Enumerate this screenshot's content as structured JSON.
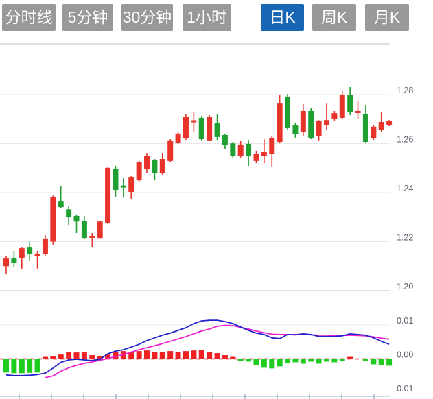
{
  "toolbar": {
    "tabs": [
      {
        "label": "分时线",
        "active": false
      },
      {
        "label": "5分钟",
        "active": false
      },
      {
        "label": "30分钟",
        "active": false
      },
      {
        "label": "1小时",
        "active": false
      },
      {
        "label": "日K",
        "active": true
      },
      {
        "label": "周K",
        "active": false
      },
      {
        "label": "月K",
        "active": false
      }
    ]
  },
  "colors": {
    "tab_bg": "#999999",
    "tab_active_bg": "#1767b5",
    "tab_text": "#ffffff",
    "candle_up": "#e8332a",
    "candle_down": "#1fa030",
    "hist_up": "#ee2222",
    "hist_down": "#1ecc1e",
    "dif_line": "#2222cc",
    "dea_line": "#ee22cc",
    "zero_line": "#f28080",
    "grid_line": "#e8e8e8",
    "panel_border": "#e2e2e2",
    "axis_line": "#c8ccda",
    "axis_tick": "#a8b0c4",
    "axis_text": "#5a5f6e"
  },
  "chart_data": {
    "type": "candlestick_with_macd",
    "main": {
      "axis_labels": [
        {
          "label": "1.28",
          "price": 1.28
        },
        {
          "label": "1.26",
          "price": 1.26
        },
        {
          "label": "1.24",
          "price": 1.24
        },
        {
          "label": "1.22",
          "price": 1.22
        },
        {
          "label": "1.20",
          "price": 1.2
        }
      ],
      "ylim": [
        1.198,
        1.301
      ],
      "ohlc_order": [
        "open",
        "close",
        "high",
        "low"
      ],
      "candles": [
        [
          1.21,
          1.2131,
          1.2142,
          1.207
        ],
        [
          1.2134,
          1.2114,
          1.2162,
          1.2095
        ],
        [
          1.2134,
          1.2173,
          1.2176,
          1.2087
        ],
        [
          1.2176,
          1.2148,
          1.2199,
          1.212
        ],
        [
          1.2145,
          1.2151,
          1.2162,
          1.209
        ],
        [
          1.2151,
          1.2213,
          1.2227,
          1.2143
        ],
        [
          1.22,
          1.2383,
          1.2388,
          1.2188
        ],
        [
          1.2366,
          1.2341,
          1.2425,
          1.2338
        ],
        [
          1.2332,
          1.2299,
          1.2346,
          1.2268
        ],
        [
          1.2305,
          1.2282,
          1.2311,
          1.2235
        ],
        [
          1.2285,
          1.2215,
          1.2305,
          1.2212
        ],
        [
          1.2218,
          1.2224,
          1.2235,
          1.2179
        ],
        [
          1.2215,
          1.2282,
          1.2285,
          1.2212
        ],
        [
          1.2277,
          1.2501,
          1.2506,
          1.2271
        ],
        [
          1.2498,
          1.2411,
          1.2509,
          1.2383
        ],
        [
          1.2429,
          1.2421,
          1.2459,
          1.238
        ],
        [
          1.2403,
          1.2464,
          1.2467,
          1.2375
        ],
        [
          1.245,
          1.2523,
          1.2529,
          1.2442
        ],
        [
          1.2495,
          1.2551,
          1.2562,
          1.2481
        ],
        [
          1.2534,
          1.2481,
          1.2537,
          1.245
        ],
        [
          1.2478,
          1.2537,
          1.2562,
          1.2473
        ],
        [
          1.2529,
          1.2613,
          1.2618,
          1.2523
        ],
        [
          1.2604,
          1.2641,
          1.2649,
          1.2599
        ],
        [
          1.2621,
          1.271,
          1.2719,
          1.2615
        ],
        [
          1.2689,
          1.2695,
          1.273,
          1.2649
        ],
        [
          1.2705,
          1.2618,
          1.2713,
          1.2613
        ],
        [
          1.2613,
          1.271,
          1.2716,
          1.261
        ],
        [
          1.2685,
          1.2627,
          1.2719,
          1.2615
        ],
        [
          1.2635,
          1.2593,
          1.2641,
          1.2579
        ],
        [
          1.2601,
          1.2551,
          1.2607,
          1.254
        ],
        [
          1.2551,
          1.2596,
          1.2612,
          1.2543
        ],
        [
          1.2599,
          1.2548,
          1.2615,
          1.2509
        ],
        [
          1.2529,
          1.2557,
          1.2571,
          1.252
        ],
        [
          1.2551,
          1.2565,
          1.2618,
          1.252
        ],
        [
          1.2559,
          1.2624,
          1.2632,
          1.2506
        ],
        [
          1.2607,
          1.2766,
          1.2797,
          1.2601
        ],
        [
          1.2792,
          1.2666,
          1.2803,
          1.2655
        ],
        [
          1.2674,
          1.2638,
          1.2685,
          1.2624
        ],
        [
          1.2646,
          1.2733,
          1.2761,
          1.2632
        ],
        [
          1.2733,
          1.2621,
          1.2744,
          1.2618
        ],
        [
          1.2632,
          1.2691,
          1.2696,
          1.2613
        ],
        [
          1.2677,
          1.2696,
          1.2766,
          1.2654
        ],
        [
          1.2702,
          1.2724,
          1.2733,
          1.2694
        ],
        [
          1.2705,
          1.28,
          1.2814,
          1.2699
        ],
        [
          1.28,
          1.273,
          1.2831,
          1.2716
        ],
        [
          1.2727,
          1.2733,
          1.2772,
          1.2702
        ],
        [
          1.2719,
          1.2607,
          1.2758,
          1.2601
        ],
        [
          1.2621,
          1.2669,
          1.2674,
          1.2615
        ],
        [
          1.2655,
          1.2688,
          1.273,
          1.2649
        ],
        [
          1.2677,
          1.2691,
          1.2696,
          1.2671
        ]
      ]
    },
    "indicator": {
      "name": "MACD",
      "axis_labels": [
        {
          "label": "0.01",
          "value": 0.01
        },
        {
          "label": "0.00",
          "value": 0.0
        },
        {
          "label": "-0.01",
          "value": -0.01
        }
      ],
      "ylim": [
        -0.011,
        0.012
      ],
      "histogram": [
        -0.004,
        -0.0042,
        -0.0042,
        -0.0041,
        -0.004,
        0.0002,
        0.0008,
        0.0013,
        0.0021,
        0.0019,
        0.0021,
        0.0011,
        0.0009,
        0.0013,
        0.0021,
        0.0023,
        0.0021,
        0.0023,
        0.0025,
        0.0021,
        0.0021,
        0.0023,
        0.0021,
        0.0023,
        0.0025,
        0.0027,
        0.0021,
        0.0017,
        0.0011,
        0.0002,
        -0.0006,
        -0.0008,
        -0.0018,
        -0.0026,
        -0.0028,
        -0.0022,
        -0.0012,
        -0.001,
        -0.0014,
        -0.0008,
        -0.0014,
        -0.0008,
        -0.001,
        -0.0006,
        0.0005,
        null,
        -0.0006,
        -0.0016,
        -0.0018,
        -0.002
      ],
      "dif": [
        -0.0047,
        -0.0049,
        -0.0049,
        -0.0048,
        -0.0046,
        -0.0042,
        -0.0027,
        -0.001,
        -0.0003,
        -0.0001,
        -0.0003,
        -0.0005,
        -0.0001,
        0.0015,
        0.0023,
        0.0027,
        0.0035,
        0.0043,
        0.0054,
        0.0062,
        0.007,
        0.0076,
        0.0084,
        0.0092,
        0.0104,
        0.0112,
        0.0114,
        0.0114,
        0.011,
        0.0104,
        0.0094,
        0.0084,
        0.0076,
        0.0072,
        0.0062,
        0.006,
        0.0072,
        0.0071,
        0.0074,
        0.0072,
        0.0066,
        0.0066,
        0.0066,
        0.0068,
        0.0074,
        0.0072,
        0.007,
        0.0062,
        0.0052,
        0.0043
      ],
      "dea": [
        null,
        null,
        null,
        null,
        null,
        -0.0055,
        -0.005,
        -0.0036,
        -0.0026,
        -0.0019,
        -0.0013,
        -0.0009,
        -0.0004,
        0.0001,
        0.0007,
        0.0013,
        0.002,
        0.0027,
        0.0033,
        0.0039,
        0.0045,
        0.0052,
        0.0059,
        0.0066,
        0.0074,
        0.0082,
        0.0088,
        0.0096,
        0.0099,
        0.0098,
        0.0093,
        0.0088,
        0.0082,
        0.0077,
        0.0073,
        0.0072,
        0.0072,
        0.0072,
        0.0073,
        0.0071,
        0.007,
        0.007,
        0.0069,
        0.0069,
        0.007,
        0.0069,
        0.0068,
        0.0065,
        0.0061,
        0.0058
      ]
    }
  }
}
